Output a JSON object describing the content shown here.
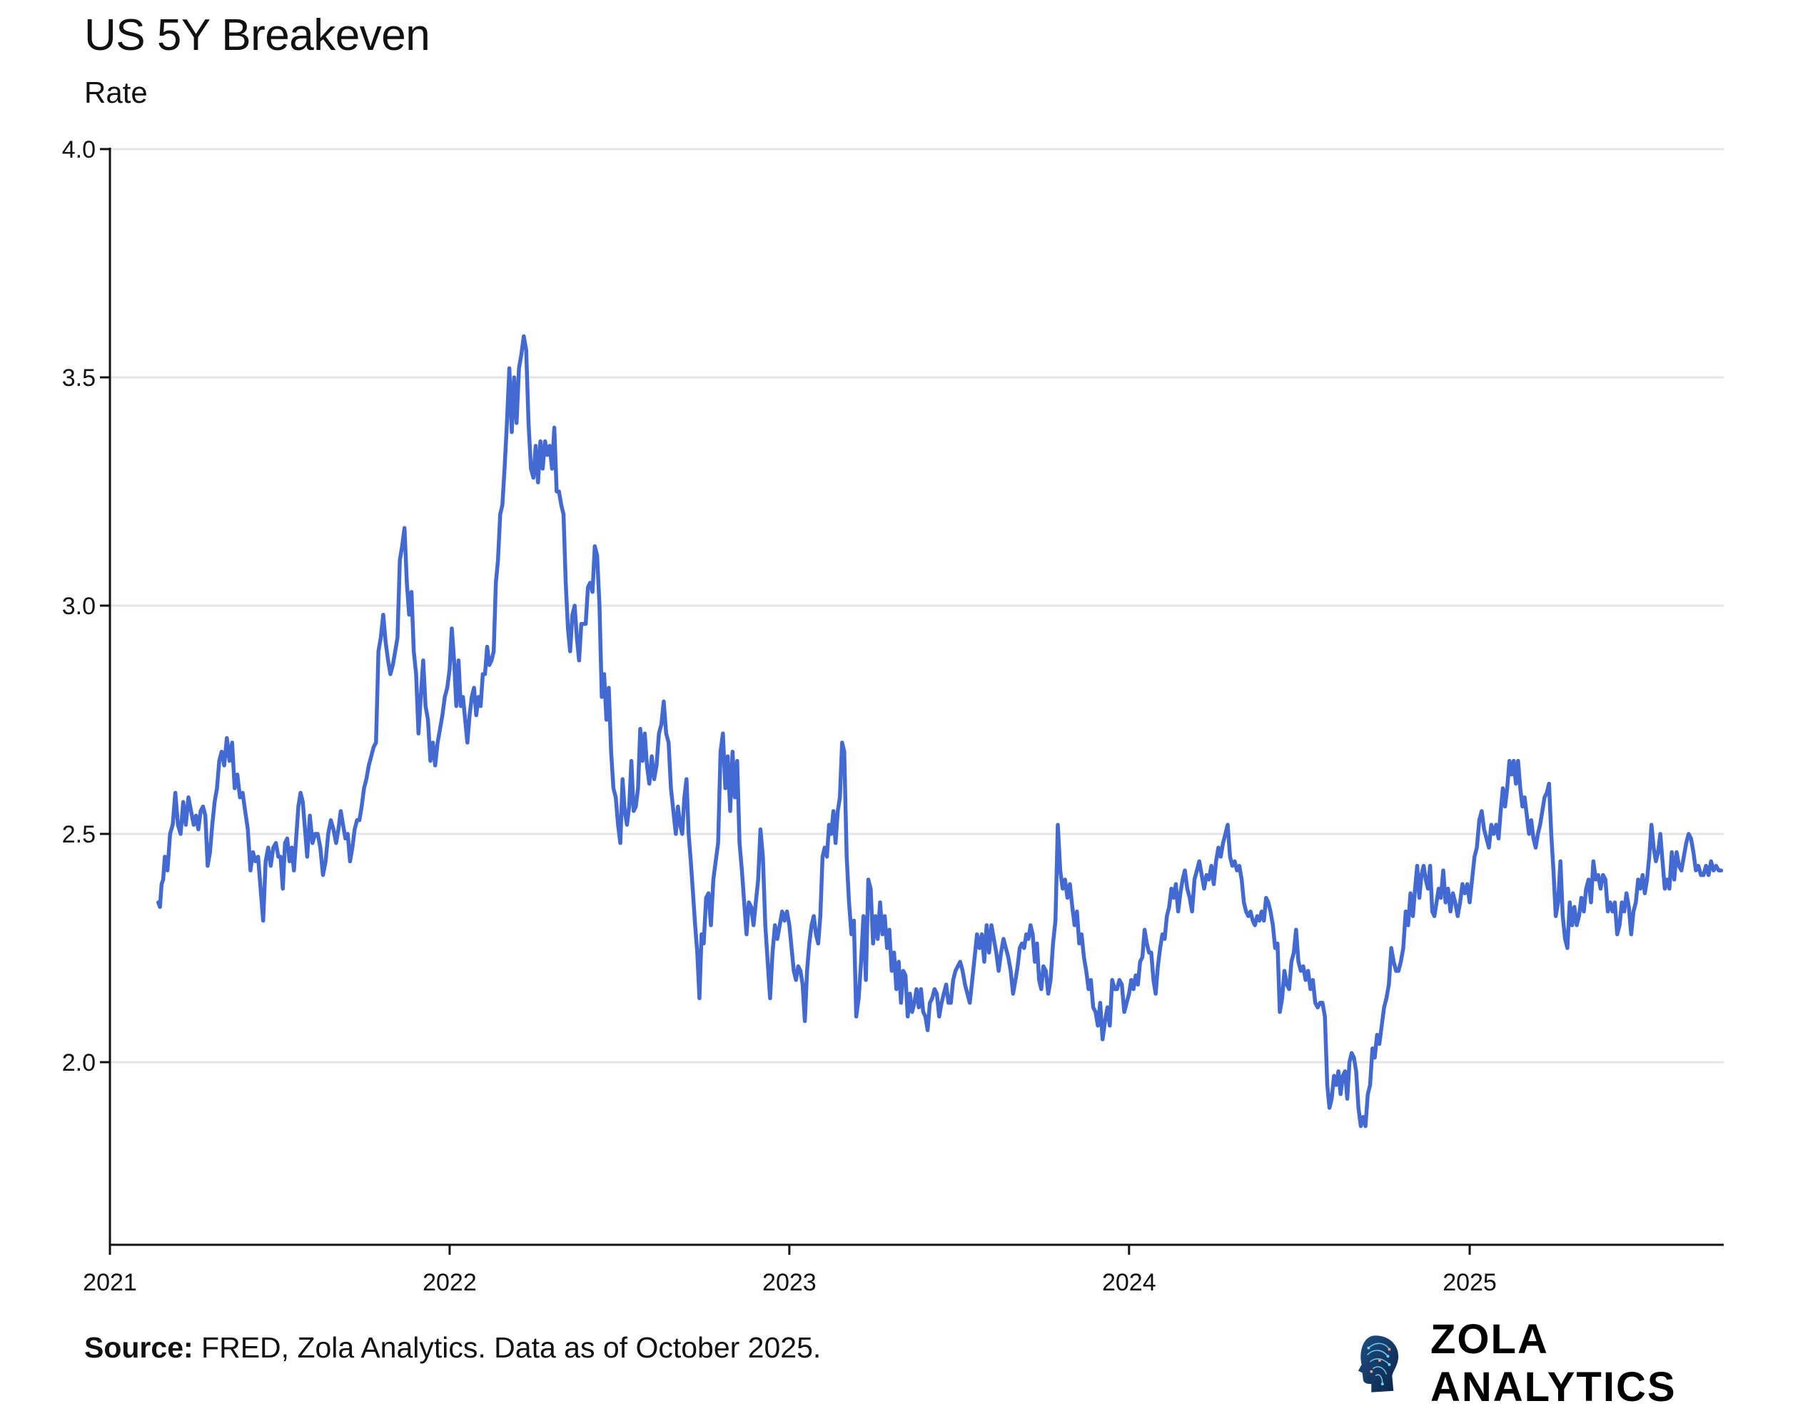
{
  "chart_data": {
    "type": "line",
    "title": "US 5Y Breakeven",
    "subtitle": "Rate",
    "xlabel": "",
    "ylabel": "",
    "xlim": [
      "2021-01-01",
      "2025-10-01"
    ],
    "ylim": [
      1.6,
      4.0
    ],
    "x_ticks": [
      "2021",
      "2022",
      "2023",
      "2024",
      "2025"
    ],
    "y_ticks": [
      "2.0",
      "2.5",
      "3.0",
      "3.5",
      "4.0"
    ],
    "grid": "horizontal",
    "legend": "none",
    "line_color": "#436AD2",
    "monthly_observations": [
      {
        "month": "2021-02",
        "start_day": 22,
        "values": [
          2.35,
          2.34,
          2.39,
          2.4
        ]
      },
      {
        "month": "2021-03",
        "values": [
          2.45,
          2.42,
          2.5,
          2.52,
          2.59,
          2.52,
          2.5,
          2.57,
          2.52,
          2.58,
          2.55
        ]
      },
      {
        "month": "2021-04",
        "values": [
          2.52,
          2.54,
          2.51,
          2.55,
          2.56,
          2.54,
          2.43,
          2.46,
          2.52,
          2.57,
          2.6,
          2.66
        ]
      },
      {
        "month": "2021-05",
        "values": [
          2.68,
          2.65,
          2.71,
          2.66,
          2.7,
          2.6,
          2.63,
          2.58,
          2.59,
          2.55,
          2.51
        ]
      },
      {
        "month": "2021-06",
        "values": [
          2.42,
          2.46,
          2.44,
          2.45,
          2.38,
          2.31,
          2.44,
          2.47,
          2.43,
          2.47,
          2.48
        ]
      },
      {
        "month": "2021-07",
        "values": [
          2.45,
          2.45,
          2.38,
          2.48,
          2.49,
          2.44,
          2.47,
          2.42,
          2.49,
          2.56,
          2.59,
          2.57,
          2.51
        ]
      },
      {
        "month": "2021-08",
        "values": [
          2.45,
          2.54,
          2.48,
          2.5,
          2.5,
          2.47,
          2.41,
          2.44,
          2.5,
          2.53,
          2.51
        ]
      },
      {
        "month": "2021-09",
        "values": [
          2.48,
          2.51,
          2.55,
          2.52,
          2.49,
          2.5,
          2.44,
          2.47,
          2.51,
          2.53,
          2.53,
          2.56
        ]
      },
      {
        "month": "2021-10",
        "values": [
          2.6,
          2.62,
          2.65,
          2.67,
          2.69,
          2.7,
          2.9,
          2.93,
          2.98,
          2.92,
          2.88,
          2.85
        ]
      },
      {
        "month": "2021-11",
        "values": [
          2.87,
          2.9,
          2.93,
          3.1,
          3.13,
          3.17,
          3.05,
          2.98,
          3.03,
          2.9,
          2.85,
          2.72
        ]
      },
      {
        "month": "2021-12",
        "values": [
          2.8,
          2.88,
          2.78,
          2.75,
          2.66,
          2.7,
          2.65,
          2.7,
          2.73,
          2.76,
          2.8,
          2.82
        ]
      },
      {
        "month": "2022-01",
        "values": [
          2.86,
          2.95,
          2.88,
          2.78,
          2.88,
          2.78,
          2.8,
          2.75,
          2.7,
          2.76,
          2.8,
          2.82,
          2.76
        ]
      },
      {
        "month": "2022-02",
        "values": [
          2.8,
          2.78,
          2.85,
          2.85,
          2.91,
          2.87,
          2.88,
          2.9,
          3.05,
          3.1,
          3.2,
          3.22
        ]
      },
      {
        "month": "2022-03",
        "values": [
          3.3,
          3.4,
          3.52,
          3.38,
          3.5,
          3.4,
          3.52,
          3.55,
          3.59,
          3.56,
          3.4,
          3.3
        ]
      },
      {
        "month": "2022-04",
        "values": [
          3.28,
          3.35,
          3.27,
          3.36,
          3.3,
          3.36,
          3.33,
          3.35,
          3.3,
          3.39,
          3.25,
          3.25
        ]
      },
      {
        "month": "2022-05",
        "values": [
          3.22,
          3.2,
          3.05,
          2.95,
          2.9,
          2.98,
          3.0,
          2.93,
          2.88,
          2.96,
          2.96,
          2.96,
          3.04
        ]
      },
      {
        "month": "2022-06",
        "values": [
          3.05,
          3.03,
          3.13,
          3.11,
          3.0,
          2.8,
          2.85,
          2.75,
          2.82,
          2.68,
          2.6,
          2.58
        ]
      },
      {
        "month": "2022-07",
        "values": [
          2.52,
          2.48,
          2.62,
          2.55,
          2.52,
          2.56,
          2.66,
          2.55,
          2.56,
          2.6,
          2.73,
          2.66,
          2.72
        ]
      },
      {
        "month": "2022-08",
        "values": [
          2.65,
          2.61,
          2.67,
          2.62,
          2.65,
          2.72,
          2.74,
          2.79,
          2.72,
          2.7,
          2.6,
          2.55
        ]
      },
      {
        "month": "2022-09",
        "values": [
          2.5,
          2.56,
          2.52,
          2.5,
          2.58,
          2.62,
          2.5,
          2.44,
          2.37,
          2.3,
          2.24,
          2.14,
          2.28
        ]
      },
      {
        "month": "2022-10",
        "values": [
          2.26,
          2.36,
          2.37,
          2.3,
          2.4,
          2.44,
          2.48,
          2.68,
          2.72,
          2.6,
          2.67,
          2.55
        ]
      },
      {
        "month": "2022-11",
        "values": [
          2.68,
          2.58,
          2.66,
          2.48,
          2.42,
          2.35,
          2.28,
          2.35,
          2.34,
          2.3,
          2.35,
          2.4
        ]
      },
      {
        "month": "2022-12",
        "values": [
          2.51,
          2.45,
          2.3,
          2.22,
          2.14,
          2.24,
          2.3,
          2.27,
          2.3,
          2.33,
          2.31,
          2.33
        ]
      },
      {
        "month": "2023-01",
        "values": [
          2.3,
          2.25,
          2.2,
          2.18,
          2.21,
          2.2,
          2.17,
          2.09,
          2.2,
          2.26,
          2.3,
          2.32,
          2.28
        ]
      },
      {
        "month": "2023-02",
        "values": [
          2.26,
          2.32,
          2.45,
          2.47,
          2.45,
          2.52,
          2.5,
          2.55,
          2.48,
          2.55,
          2.58,
          2.7
        ]
      },
      {
        "month": "2023-03",
        "values": [
          2.68,
          2.45,
          2.35,
          2.28,
          2.31,
          2.1,
          2.14,
          2.22,
          2.32,
          2.18,
          2.4,
          2.38
        ]
      },
      {
        "month": "2023-04",
        "values": [
          2.26,
          2.32,
          2.27,
          2.35,
          2.28,
          2.32,
          2.25,
          2.29,
          2.2,
          2.24,
          2.16,
          2.22
        ]
      },
      {
        "month": "2023-05",
        "values": [
          2.13,
          2.2,
          2.19,
          2.1,
          2.15,
          2.11,
          2.13,
          2.16,
          2.12,
          2.16,
          2.11,
          2.1,
          2.07
        ]
      },
      {
        "month": "2023-06",
        "values": [
          2.13,
          2.14,
          2.16,
          2.15,
          2.1,
          2.13,
          2.15,
          2.17,
          2.13,
          2.13,
          2.18,
          2.2
        ]
      },
      {
        "month": "2023-07",
        "values": [
          2.21,
          2.22,
          2.2,
          2.17,
          2.15,
          2.13,
          2.18,
          2.23,
          2.28,
          2.25,
          2.28,
          2.22
        ]
      },
      {
        "month": "2023-08",
        "values": [
          2.3,
          2.24,
          2.3,
          2.27,
          2.24,
          2.2,
          2.24,
          2.27,
          2.25,
          2.23,
          2.2,
          2.15
        ]
      },
      {
        "month": "2023-09",
        "values": [
          2.18,
          2.21,
          2.25,
          2.26,
          2.25,
          2.28,
          2.27,
          2.3,
          2.28,
          2.22,
          2.26,
          2.18,
          2.16
        ]
      },
      {
        "month": "2023-10",
        "values": [
          2.21,
          2.2,
          2.15,
          2.18,
          2.26,
          2.31,
          2.52,
          2.42,
          2.38,
          2.4,
          2.36,
          2.39
        ]
      },
      {
        "month": "2023-11",
        "values": [
          2.34,
          2.3,
          2.33,
          2.26,
          2.28,
          2.23,
          2.2,
          2.16,
          2.18,
          2.12,
          2.11,
          2.08
        ]
      },
      {
        "month": "2023-12",
        "values": [
          2.13,
          2.05,
          2.09,
          2.12,
          2.08,
          2.18,
          2.16,
          2.16,
          2.18,
          2.17,
          2.11,
          2.13
        ]
      },
      {
        "month": "2024-01",
        "values": [
          2.15,
          2.18,
          2.16,
          2.19,
          2.17,
          2.22,
          2.23,
          2.29,
          2.26,
          2.24,
          2.24,
          2.18,
          2.15
        ]
      },
      {
        "month": "2024-02",
        "values": [
          2.21,
          2.25,
          2.28,
          2.27,
          2.32,
          2.34,
          2.38,
          2.36,
          2.39,
          2.33,
          2.37,
          2.4
        ]
      },
      {
        "month": "2024-03",
        "values": [
          2.42,
          2.38,
          2.36,
          2.33,
          2.4,
          2.42,
          2.44,
          2.41,
          2.38,
          2.41,
          2.4,
          2.43
        ]
      },
      {
        "month": "2024-04",
        "values": [
          2.39,
          2.44,
          2.47,
          2.45,
          2.48,
          2.5,
          2.52,
          2.45,
          2.43,
          2.44,
          2.42,
          2.43
        ]
      },
      {
        "month": "2024-05",
        "values": [
          2.4,
          2.35,
          2.33,
          2.32,
          2.33,
          2.31,
          2.3,
          2.32,
          2.31,
          2.33,
          2.31,
          2.36,
          2.35
        ]
      },
      {
        "month": "2024-06",
        "values": [
          2.33,
          2.3,
          2.25,
          2.26,
          2.11,
          2.14,
          2.2,
          2.17,
          2.16,
          2.22,
          2.24,
          2.29
        ]
      },
      {
        "month": "2024-07",
        "values": [
          2.22,
          2.2,
          2.21,
          2.18,
          2.2,
          2.16,
          2.18,
          2.13,
          2.12,
          2.13,
          2.13,
          2.1
        ]
      },
      {
        "month": "2024-08",
        "values": [
          1.95,
          1.9,
          1.92,
          1.97,
          1.95,
          1.98,
          1.93,
          1.97,
          1.98,
          1.92,
          2.0,
          2.02,
          2.01
        ]
      },
      {
        "month": "2024-09",
        "values": [
          1.98,
          1.9,
          1.86,
          1.88,
          1.86,
          1.93,
          1.95,
          2.03,
          2.01,
          2.06,
          2.04,
          2.08
        ]
      },
      {
        "month": "2024-10",
        "values": [
          2.12,
          2.14,
          2.17,
          2.25,
          2.22,
          2.2,
          2.2,
          2.22,
          2.25,
          2.33,
          2.3,
          2.37
        ]
      },
      {
        "month": "2024-11",
        "values": [
          2.32,
          2.38,
          2.43,
          2.36,
          2.41,
          2.43,
          2.4,
          2.38,
          2.43,
          2.33,
          2.32,
          2.35,
          2.38
        ]
      },
      {
        "month": "2024-12",
        "values": [
          2.36,
          2.42,
          2.35,
          2.38,
          2.33,
          2.37,
          2.35,
          2.32,
          2.35,
          2.39,
          2.37,
          2.39
        ]
      },
      {
        "month": "2025-01",
        "values": [
          2.35,
          2.4,
          2.45,
          2.47,
          2.53,
          2.55,
          2.51,
          2.49,
          2.47,
          2.52,
          2.5,
          2.52
        ]
      },
      {
        "month": "2025-02",
        "values": [
          2.49,
          2.55,
          2.6,
          2.56,
          2.6,
          2.66,
          2.63,
          2.66,
          2.61,
          2.66,
          2.6,
          2.56
        ]
      },
      {
        "month": "2025-03",
        "values": [
          2.58,
          2.54,
          2.5,
          2.53,
          2.49,
          2.47,
          2.5,
          2.52,
          2.55,
          2.58,
          2.59,
          2.61,
          2.5
        ]
      },
      {
        "month": "2025-04",
        "values": [
          2.42,
          2.32,
          2.35,
          2.44,
          2.32,
          2.27,
          2.25,
          2.35,
          2.3,
          2.34,
          2.3,
          2.32
        ]
      },
      {
        "month": "2025-05",
        "values": [
          2.36,
          2.33,
          2.38,
          2.4,
          2.35,
          2.44,
          2.4,
          2.41,
          2.38,
          2.41,
          2.4,
          2.33
        ]
      },
      {
        "month": "2025-06",
        "values": [
          2.35,
          2.33,
          2.35,
          2.28,
          2.3,
          2.35,
          2.33,
          2.37,
          2.34,
          2.28,
          2.33,
          2.35
        ]
      },
      {
        "month": "2025-07",
        "values": [
          2.4,
          2.38,
          2.41,
          2.37,
          2.4,
          2.45,
          2.52,
          2.47,
          2.44,
          2.46,
          2.5,
          2.44,
          2.38
        ]
      },
      {
        "month": "2025-08",
        "values": [
          2.4,
          2.38,
          2.46,
          2.4,
          2.46,
          2.43,
          2.42,
          2.45,
          2.48,
          2.5,
          2.49,
          2.46
        ]
      },
      {
        "month": "2025-09",
        "values": [
          2.42,
          2.43,
          2.41,
          2.41,
          2.43,
          2.41,
          2.44,
          2.42,
          2.43,
          2.42,
          2.42
        ]
      }
    ]
  },
  "footer": {
    "source_label": "Source:",
    "source_text": " FRED, Zola Analytics. Data as of October 2025.",
    "brand": "ZOLA ANALYTICS",
    "logo_icon": "ai-head-circuit-icon"
  }
}
